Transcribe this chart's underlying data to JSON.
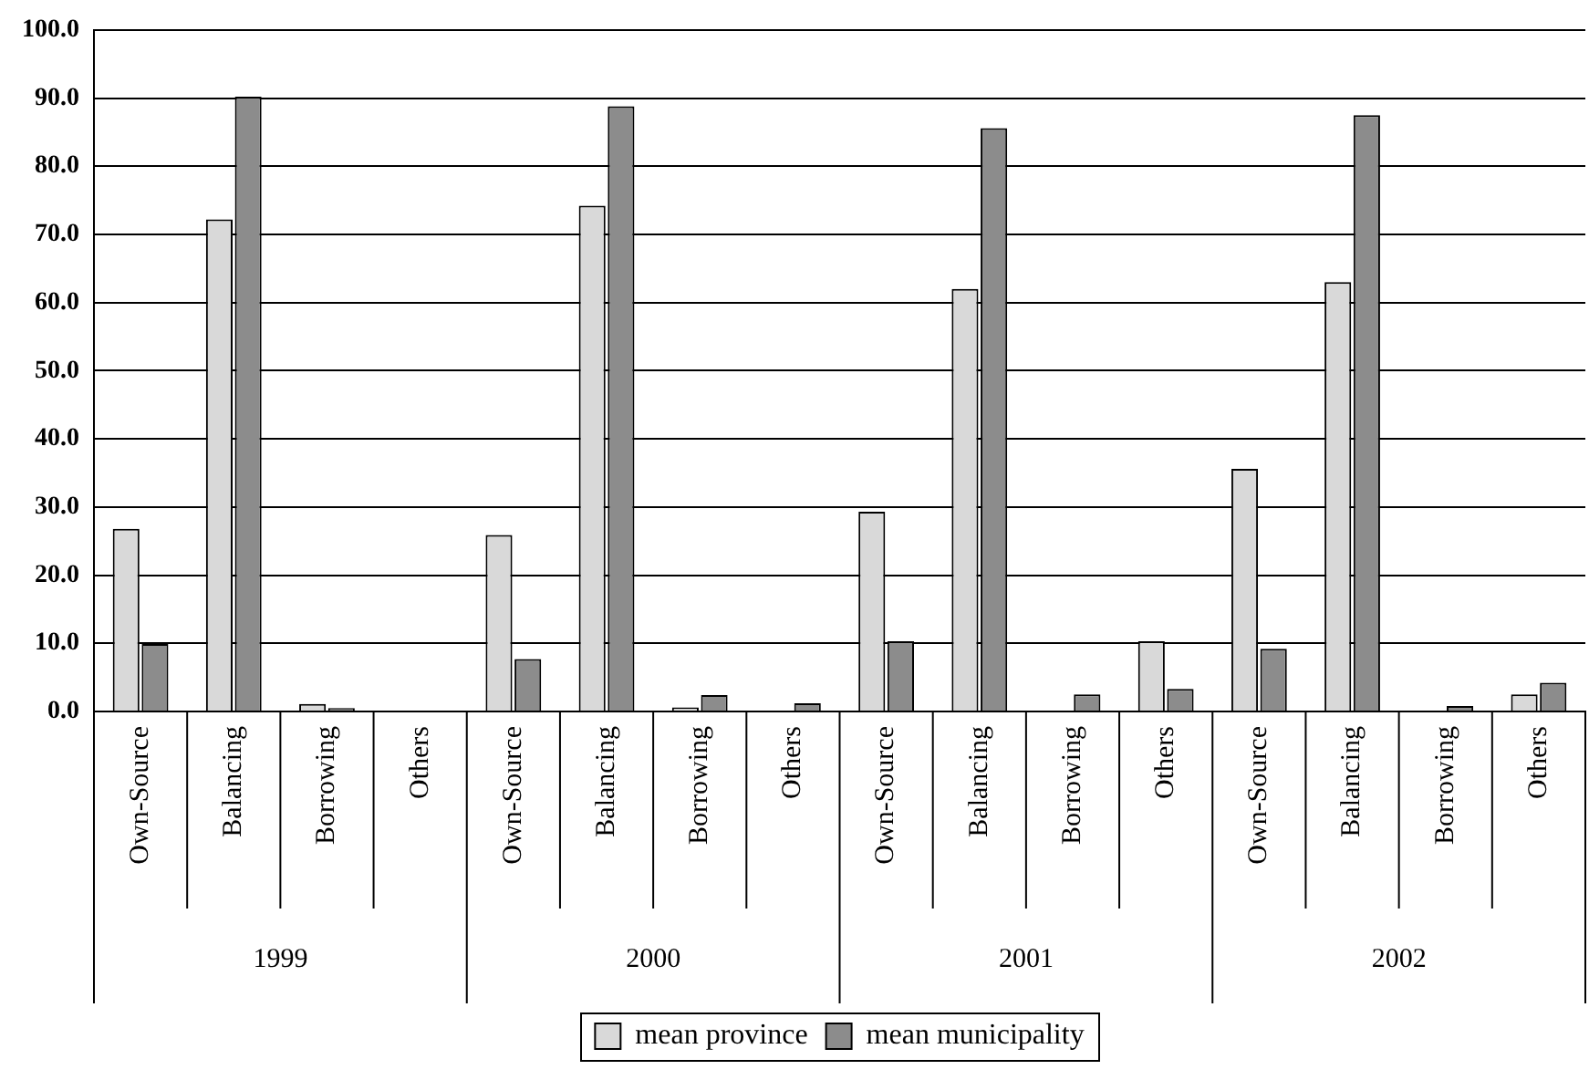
{
  "chart_data": {
    "type": "bar",
    "categories": [
      "Own-Source",
      "Balancing",
      "Borrowing",
      "Others",
      "Own-Source",
      "Balancing",
      "Borrowing",
      "Others",
      "Own-Source",
      "Balancing",
      "Borrowing",
      "Others",
      "Own-Source",
      "Balancing",
      "Borrowing",
      "Others"
    ],
    "annotations": [
      "1999",
      "2000",
      "2001",
      "2002"
    ],
    "series": [
      {
        "name": "mean province",
        "color": "#d9d9d9",
        "values": [
          26.8,
          72.2,
          1.1,
          0,
          25.9,
          74.2,
          0.6,
          0,
          29.3,
          62.0,
          0,
          10.3,
          35.6,
          63.0,
          0,
          2.5
        ]
      },
      {
        "name": "mean municipality",
        "color": "#8c8c8c",
        "values": [
          9.9,
          90.2,
          0.5,
          0,
          7.7,
          88.8,
          2.4,
          1.2,
          10.3,
          85.6,
          2.5,
          3.3,
          9.2,
          87.5,
          0.8,
          4.2
        ]
      }
    ],
    "ylim": [
      0,
      100
    ],
    "yticks": [
      {
        "value": 0,
        "label": "0.0"
      },
      {
        "value": 10,
        "label": "10.0"
      },
      {
        "value": 20,
        "label": "20.0"
      },
      {
        "value": 30,
        "label": "30.0"
      },
      {
        "value": 40,
        "label": "40.0"
      },
      {
        "value": 50,
        "label": "50.0"
      },
      {
        "value": 60,
        "label": "60.0"
      },
      {
        "value": 70,
        "label": "70.0"
      },
      {
        "value": 80,
        "label": "80.0"
      },
      {
        "value": 90,
        "label": "90.0"
      },
      {
        "value": 100,
        "label": "100.0"
      }
    ],
    "grid": "y",
    "legend": "bottom"
  }
}
